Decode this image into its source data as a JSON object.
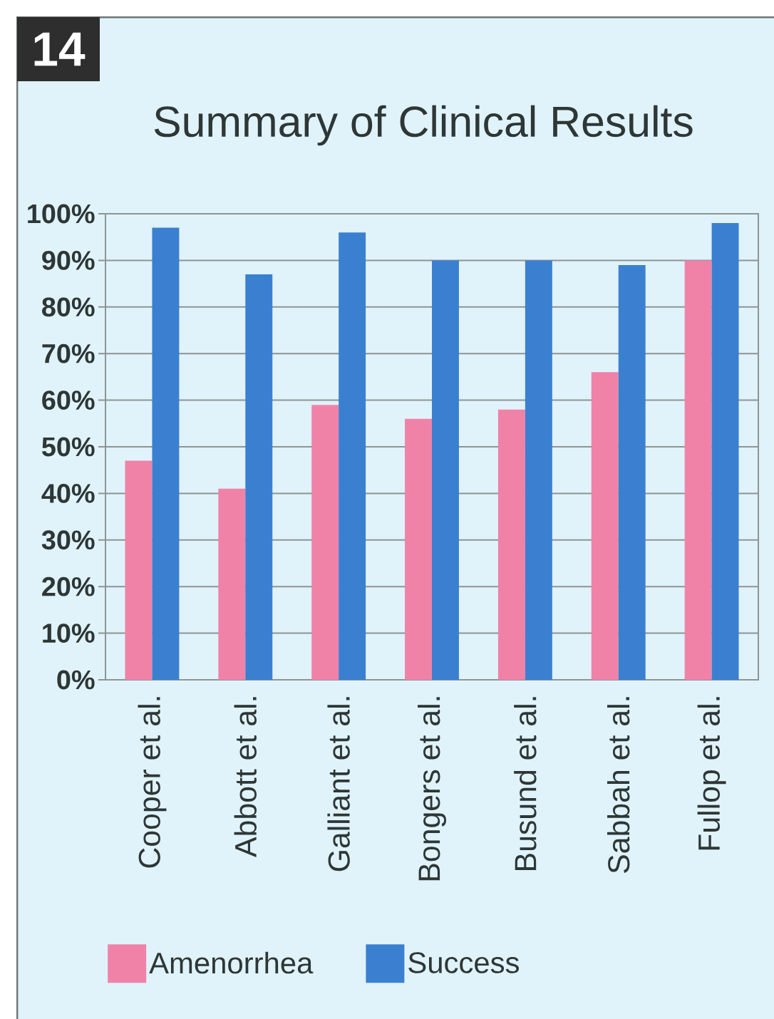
{
  "chart_data": {
    "type": "bar",
    "title": "Summary of Clinical Results",
    "annotations": [
      "14"
    ],
    "categories": [
      "Cooper et al.",
      "Abbott et al.",
      "Galliant et al.",
      "Bongers et al.",
      "Busund et al.",
      "Sabbah et al.",
      "Fullop et al."
    ],
    "series": [
      {
        "name": "Amenorrhea",
        "color": "#f082a8",
        "values": [
          47,
          41,
          59,
          56,
          58,
          66,
          90
        ]
      },
      {
        "name": "Success",
        "color": "#3b80d0",
        "values": [
          97,
          87,
          96,
          90,
          90,
          89,
          98
        ]
      }
    ],
    "ylim": [
      0,
      100
    ],
    "yticks": [
      {
        "value": 0,
        "label": "0%"
      },
      {
        "value": 10,
        "label": "10%"
      },
      {
        "value": 20,
        "label": "20%"
      },
      {
        "value": 30,
        "label": "30%"
      },
      {
        "value": 40,
        "label": "40%"
      },
      {
        "value": 50,
        "label": "50%"
      },
      {
        "value": 60,
        "label": "60%"
      },
      {
        "value": 70,
        "label": "70%"
      },
      {
        "value": 80,
        "label": "80%"
      },
      {
        "value": 90,
        "label": "90%"
      },
      {
        "value": 100,
        "label": "100%"
      }
    ],
    "grid": "y",
    "legend": "bottom"
  }
}
